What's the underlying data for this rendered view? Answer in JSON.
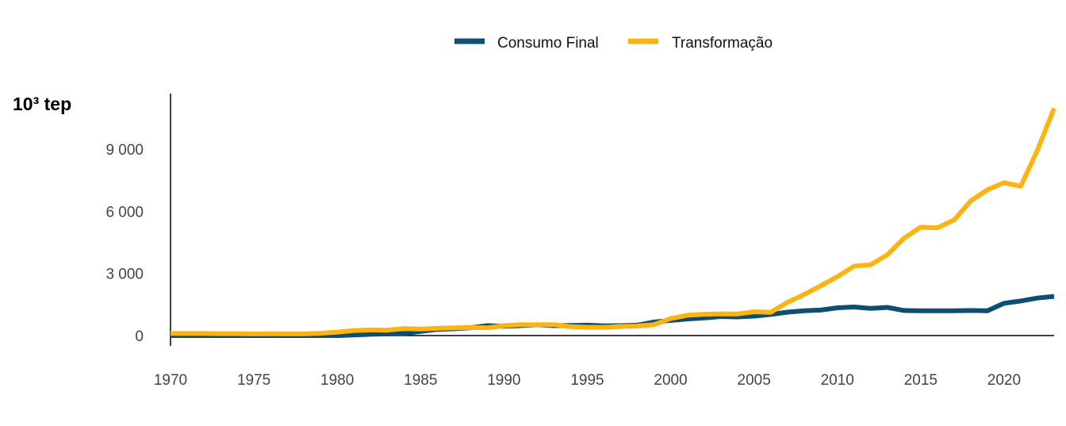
{
  "chart_data": {
    "type": "line",
    "ylabel": "10³ tep",
    "xlim": [
      1970,
      2023
    ],
    "ylim": [
      -300,
      11500
    ],
    "x_ticks": [
      1970,
      1975,
      1980,
      1985,
      1990,
      1995,
      2000,
      2005,
      2010,
      2015,
      2020
    ],
    "y_ticks": [
      {
        "value": 0,
        "label": "0"
      },
      {
        "value": 3000,
        "label": "3 000"
      },
      {
        "value": 6000,
        "label": "6 000"
      },
      {
        "value": 9000,
        "label": "9 000"
      }
    ],
    "grid": false,
    "legend": "top-center",
    "x": [
      1970,
      1971,
      1972,
      1973,
      1974,
      1975,
      1976,
      1977,
      1978,
      1979,
      1980,
      1981,
      1982,
      1983,
      1984,
      1985,
      1986,
      1987,
      1988,
      1989,
      1990,
      1991,
      1992,
      1993,
      1994,
      1995,
      1996,
      1997,
      1998,
      1999,
      2000,
      2001,
      2002,
      2003,
      2004,
      2005,
      2006,
      2007,
      2008,
      2009,
      2010,
      2011,
      2012,
      2013,
      2014,
      2015,
      2016,
      2017,
      2018,
      2019,
      2020,
      2021,
      2022,
      2023
    ],
    "series": [
      {
        "name": "Consumo Final",
        "color": "#0c4f72",
        "values": [
          0,
          0,
          0,
          0,
          0,
          0,
          0,
          0,
          0,
          0,
          0,
          30,
          60,
          80,
          100,
          200,
          300,
          330,
          380,
          480,
          450,
          480,
          520,
          480,
          490,
          500,
          470,
          480,
          500,
          650,
          730,
          800,
          850,
          920,
          900,
          940,
          1020,
          1130,
          1200,
          1230,
          1340,
          1380,
          1310,
          1360,
          1210,
          1200,
          1200,
          1200,
          1210,
          1200,
          1560,
          1670,
          1810,
          1890
        ]
      },
      {
        "name": "Transformação",
        "color": "#fbb412",
        "values": [
          100,
          100,
          100,
          90,
          90,
          80,
          90,
          80,
          80,
          110,
          170,
          240,
          270,
          260,
          340,
          310,
          350,
          370,
          390,
          370,
          480,
          530,
          520,
          530,
          430,
          400,
          400,
          440,
          460,
          530,
          820,
          980,
          1030,
          1050,
          1040,
          1150,
          1120,
          1600,
          1980,
          2400,
          2840,
          3350,
          3420,
          3900,
          4700,
          5230,
          5200,
          5580,
          6500,
          7040,
          7380,
          7210,
          8950,
          10970
        ]
      }
    ]
  }
}
